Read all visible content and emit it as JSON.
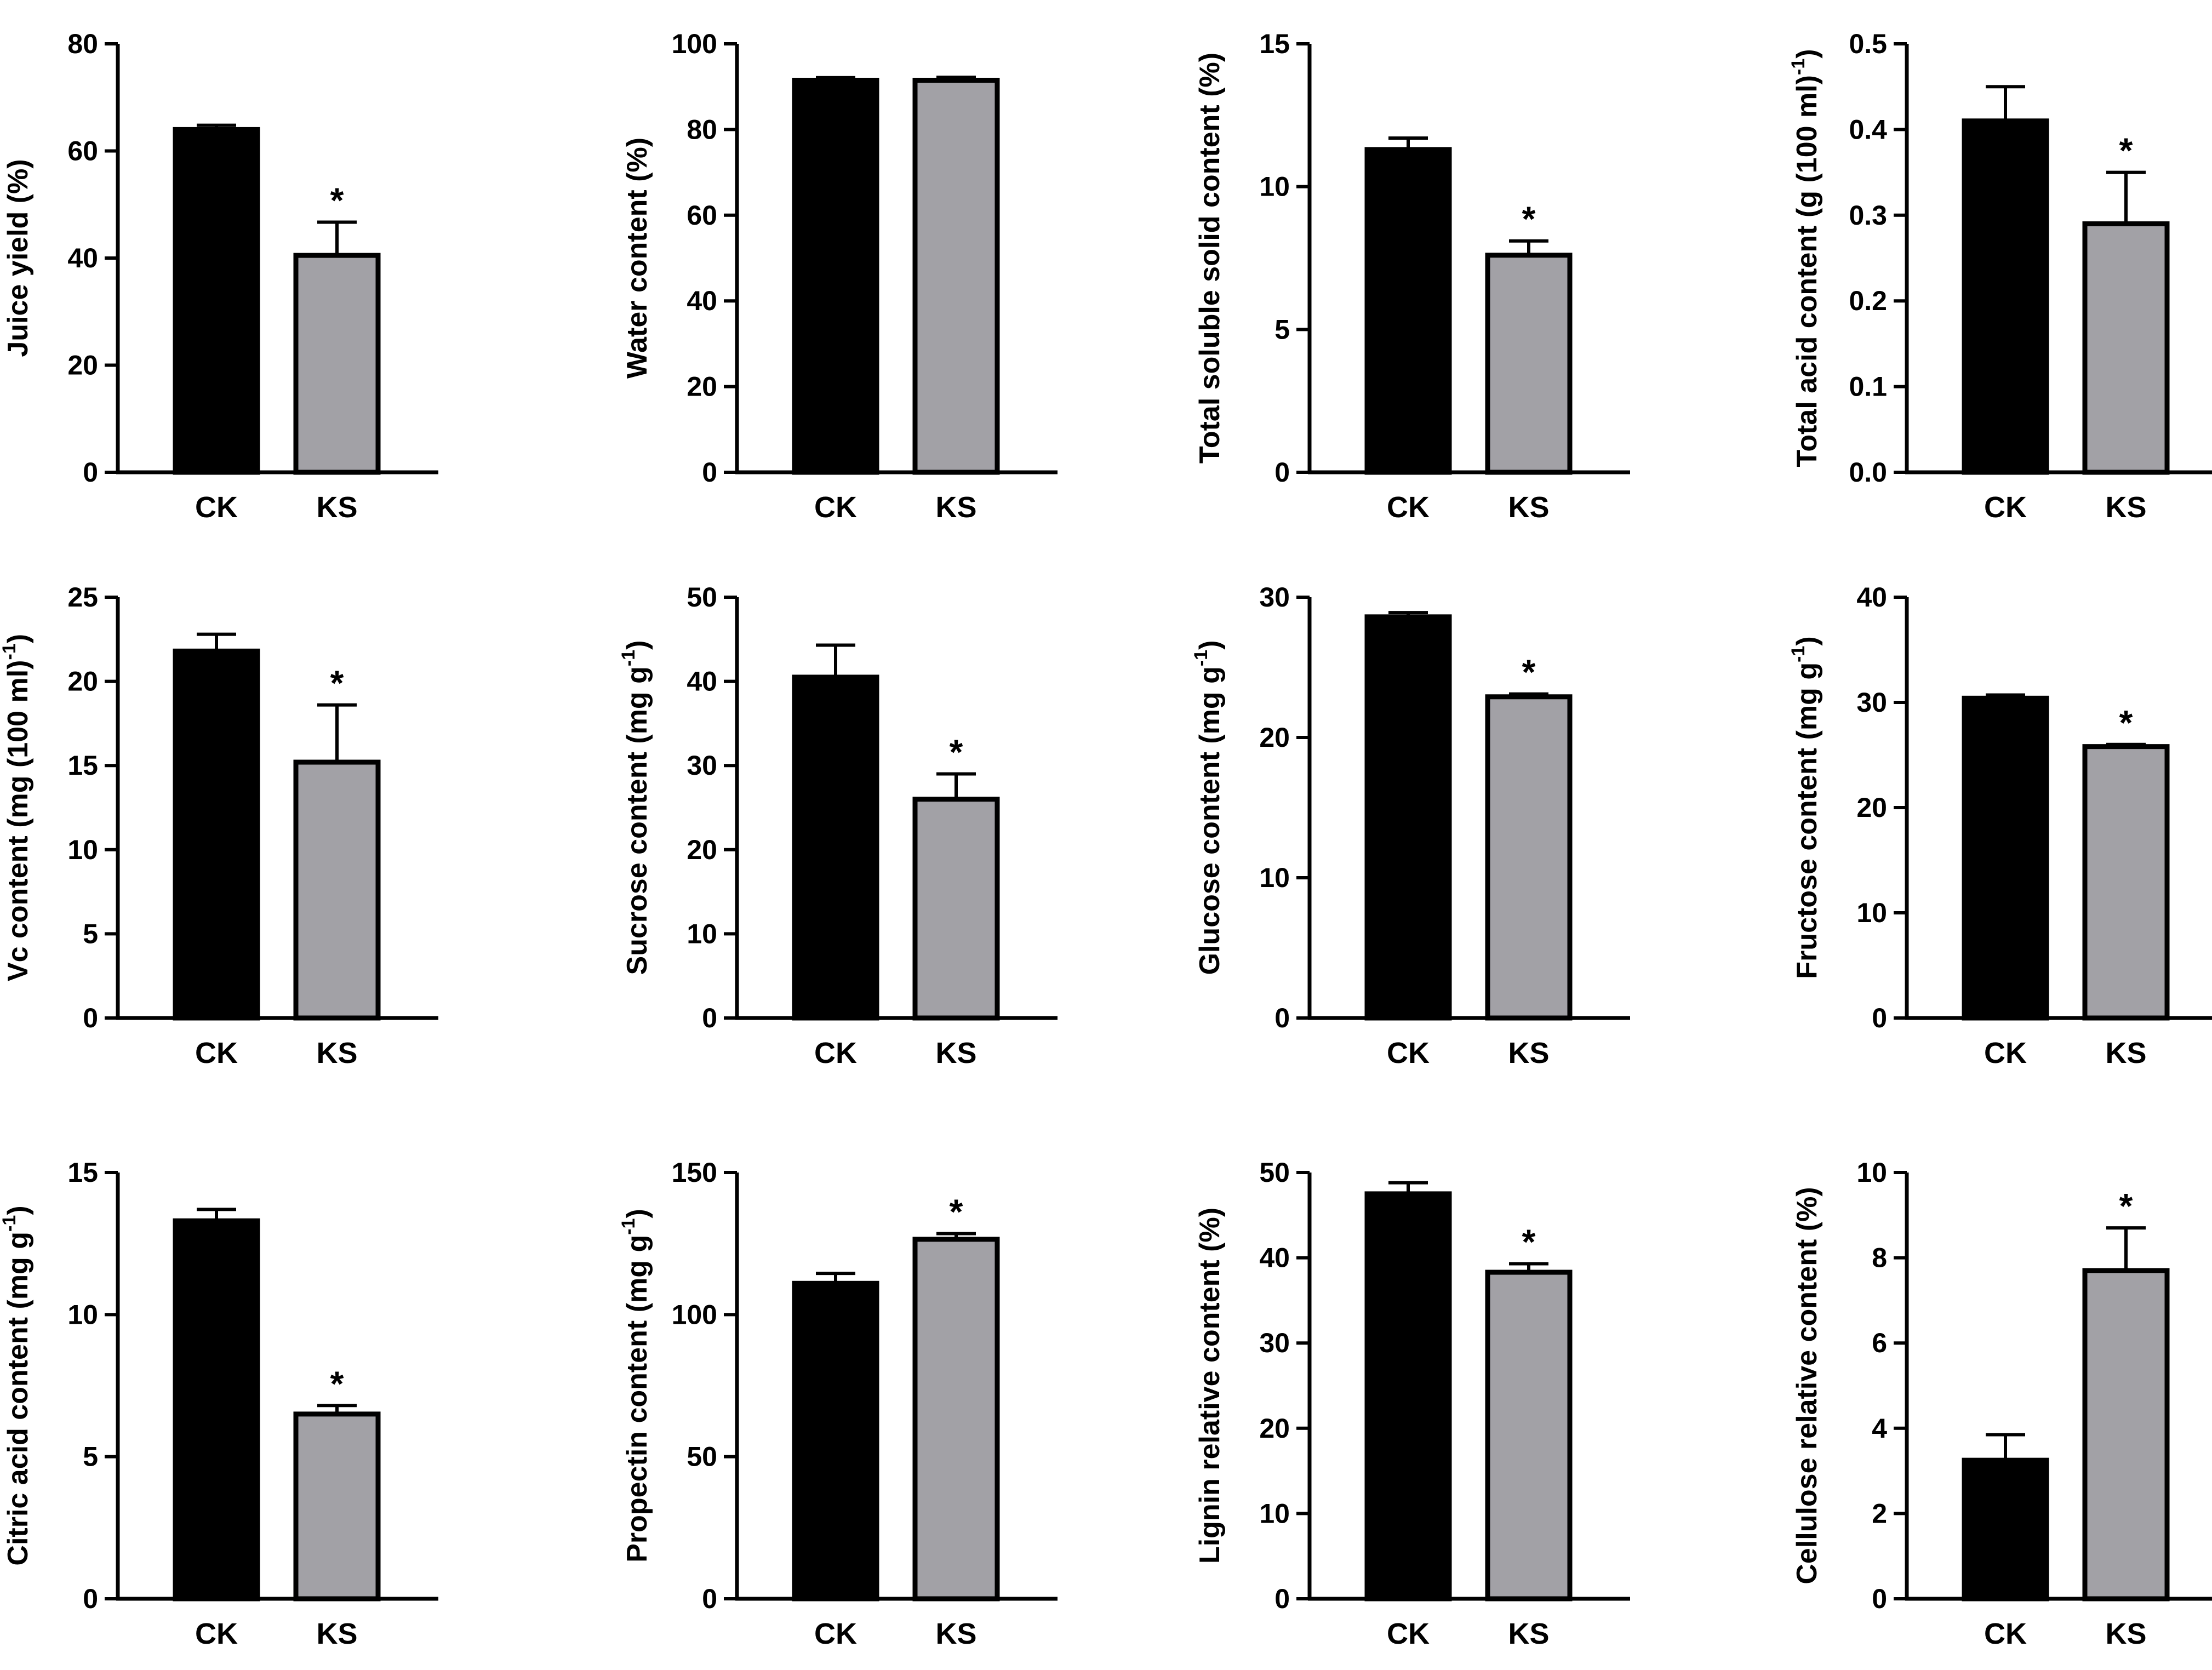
{
  "figure": {
    "colors": {
      "ck": "#000000",
      "ks": "#a2a1a6",
      "axis": "#000000"
    }
  },
  "chart_data": [
    {
      "type": "bar",
      "categories": [
        "CK",
        "KS"
      ],
      "values": [
        64,
        40.5
      ],
      "errors": [
        0.8,
        6.2
      ],
      "significance": [
        "",
        "*"
      ],
      "ylabel": "Juice yield (%)",
      "ylim": [
        0,
        80
      ],
      "yticks": [
        0,
        20,
        40,
        60,
        80
      ],
      "tick_labels": [
        "0",
        "20",
        "40",
        "60",
        "80"
      ]
    },
    {
      "type": "bar",
      "categories": [
        "CK",
        "KS"
      ],
      "values": [
        91.5,
        91.5
      ],
      "errors": [
        0.6,
        0.7
      ],
      "significance": [
        "",
        ""
      ],
      "ylabel": "Water content (%)",
      "ylim": [
        0,
        100
      ],
      "yticks": [
        0,
        20,
        40,
        60,
        80,
        100
      ],
      "tick_labels": [
        "0",
        "20",
        "40",
        "60",
        "80",
        "100"
      ]
    },
    {
      "type": "bar",
      "categories": [
        "CK",
        "KS"
      ],
      "values": [
        11.3,
        7.6
      ],
      "errors": [
        0.4,
        0.5
      ],
      "significance": [
        "",
        "*"
      ],
      "ylabel": "Total soluble solid content (%)",
      "ylim": [
        0,
        15
      ],
      "yticks": [
        0,
        5,
        10,
        15
      ],
      "tick_labels": [
        "0",
        "5",
        "10",
        "15"
      ]
    },
    {
      "type": "bar",
      "categories": [
        "CK",
        "KS"
      ],
      "values": [
        0.41,
        0.29
      ],
      "errors": [
        0.04,
        0.06
      ],
      "significance": [
        "",
        "*"
      ],
      "ylabel": "Total acid content (g (100 ml)",
      "ylabel_sup": "-1",
      "ylabel_end": ")",
      "ylim": [
        0,
        0.5
      ],
      "yticks": [
        0,
        0.1,
        0.2,
        0.3,
        0.4,
        0.5
      ],
      "tick_labels": [
        "0.0",
        "0.1",
        "0.2",
        "0.3",
        "0.4",
        "0.5"
      ]
    },
    {
      "type": "bar",
      "categories": [
        "CK",
        "KS"
      ],
      "values": [
        21.8,
        15.2
      ],
      "errors": [
        1.0,
        3.4
      ],
      "significance": [
        "",
        "*"
      ],
      "ylabel": "Vc content (mg (100 ml)",
      "ylabel_sup": "-1",
      "ylabel_end": ")",
      "ylim": [
        0,
        25
      ],
      "yticks": [
        0,
        5,
        10,
        15,
        20,
        25
      ],
      "tick_labels": [
        "0",
        "5",
        "10",
        "15",
        "20",
        "25"
      ]
    },
    {
      "type": "bar",
      "categories": [
        "CK",
        "KS"
      ],
      "values": [
        40.5,
        26
      ],
      "errors": [
        3.8,
        3.0
      ],
      "significance": [
        "",
        "*"
      ],
      "ylabel": "Sucrose content (mg g",
      "ylabel_sup": "-1",
      "ylabel_end": ")",
      "ylim": [
        0,
        50
      ],
      "yticks": [
        0,
        10,
        20,
        30,
        40,
        50
      ],
      "tick_labels": [
        "0",
        "10",
        "20",
        "30",
        "40",
        "50"
      ]
    },
    {
      "type": "bar",
      "categories": [
        "CK",
        "KS"
      ],
      "values": [
        28.6,
        22.9
      ],
      "errors": [
        0.3,
        0.2
      ],
      "significance": [
        "",
        "*"
      ],
      "ylabel": "Glucose content (mg g",
      "ylabel_sup": "-1",
      "ylabel_end": ")",
      "ylim": [
        0,
        30
      ],
      "yticks": [
        0,
        10,
        20,
        30
      ],
      "tick_labels": [
        "0",
        "10",
        "20",
        "30"
      ]
    },
    {
      "type": "bar",
      "categories": [
        "CK",
        "KS"
      ],
      "values": [
        30.4,
        25.8
      ],
      "errors": [
        0.3,
        0.2
      ],
      "significance": [
        "",
        "*"
      ],
      "ylabel": "Fructose content (mg g",
      "ylabel_sup": "-1",
      "ylabel_end": ")",
      "ylim": [
        0,
        40
      ],
      "yticks": [
        0,
        10,
        20,
        30,
        40
      ],
      "tick_labels": [
        "0",
        "10",
        "20",
        "30",
        "40"
      ]
    },
    {
      "type": "bar",
      "categories": [
        "CK",
        "KS"
      ],
      "values": [
        13.3,
        6.5
      ],
      "errors": [
        0.4,
        0.3
      ],
      "significance": [
        "",
        "*"
      ],
      "ylabel": "Citric acid content (mg g",
      "ylabel_sup": "-1",
      "ylabel_end": ")",
      "ylim": [
        0,
        15
      ],
      "yticks": [
        0,
        5,
        10,
        15
      ],
      "tick_labels": [
        "0",
        "5",
        "10",
        "15"
      ]
    },
    {
      "type": "bar",
      "categories": [
        "CK",
        "KS"
      ],
      "values": [
        111,
        126.5
      ],
      "errors": [
        3.5,
        2.0
      ],
      "significance": [
        "",
        "*"
      ],
      "ylabel": "Propectin content (mg g",
      "ylabel_sup": "-1",
      "ylabel_end": ")",
      "ylim": [
        0,
        150
      ],
      "yticks": [
        0,
        50,
        100,
        150
      ],
      "tick_labels": [
        "0",
        "50",
        "100",
        "150"
      ]
    },
    {
      "type": "bar",
      "categories": [
        "CK",
        "KS"
      ],
      "values": [
        47.5,
        38.3
      ],
      "errors": [
        1.3,
        1.0
      ],
      "significance": [
        "",
        "*"
      ],
      "ylabel": "Lignin relative content (%)",
      "ylim": [
        0,
        50
      ],
      "yticks": [
        0,
        10,
        20,
        30,
        40,
        50
      ],
      "tick_labels": [
        "0",
        "10",
        "20",
        "30",
        "40",
        "50"
      ]
    },
    {
      "type": "bar",
      "categories": [
        "CK",
        "KS"
      ],
      "values": [
        3.25,
        7.7
      ],
      "errors": [
        0.6,
        1.0
      ],
      "significance": [
        "",
        "*"
      ],
      "ylabel": "Cellulose relative content (%)",
      "ylim": [
        0,
        10
      ],
      "yticks": [
        0,
        2,
        4,
        6,
        8,
        10
      ],
      "tick_labels": [
        "0",
        "2",
        "4",
        "6",
        "8",
        "10"
      ]
    }
  ]
}
